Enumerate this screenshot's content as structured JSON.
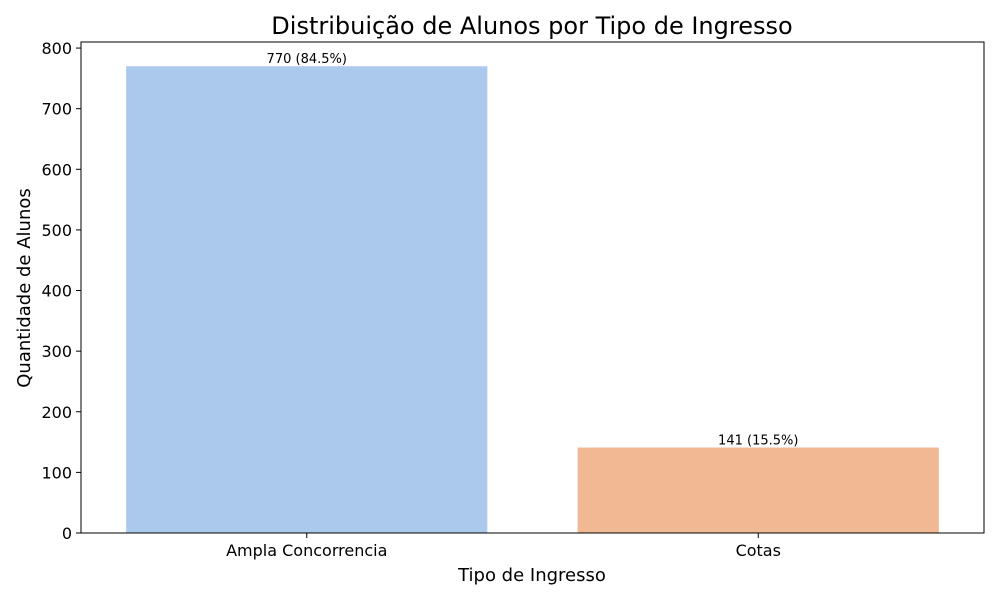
{
  "chart_data": {
    "type": "bar",
    "title": "Distribuição de Alunos por Tipo de Ingresso",
    "xlabel": "Tipo de Ingresso",
    "ylabel": "Quantidade de Alunos",
    "categories": [
      "Ampla Concorrencia",
      "Cotas"
    ],
    "values": [
      770,
      141
    ],
    "data_labels": [
      "770 (84.5%)",
      "141 (15.5%)"
    ],
    "colors": [
      "#abc9ec",
      "#f0b893"
    ],
    "ylim": [
      0,
      810
    ],
    "yticks": [
      0,
      100,
      200,
      300,
      400,
      500,
      600,
      700,
      800
    ],
    "grid": false,
    "legend": "none"
  }
}
